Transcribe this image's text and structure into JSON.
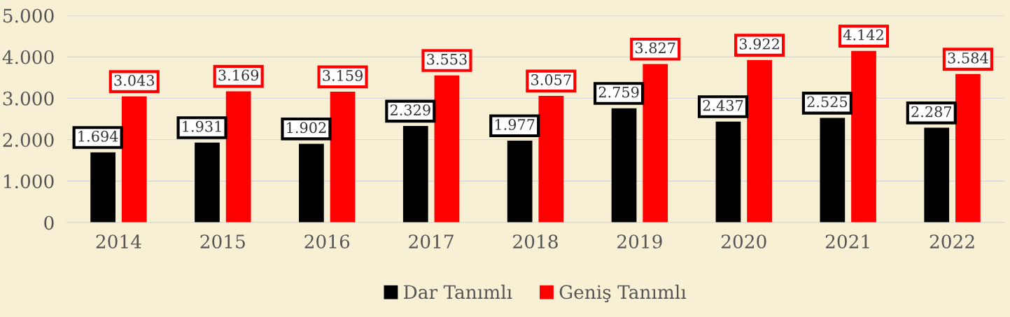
{
  "chart_data": {
    "type": "bar",
    "categories": [
      "2014",
      "2015",
      "2016",
      "2017",
      "2018",
      "2019",
      "2020",
      "2021",
      "2022"
    ],
    "series": [
      {
        "name": "Dar Tanımlı",
        "color": "#000000",
        "values": [
          1694,
          1931,
          1902,
          2329,
          1977,
          2759,
          2437,
          2525,
          2287
        ],
        "value_labels": [
          "1.694",
          "1.931",
          "1.902",
          "2.329",
          "1.977",
          "2.759",
          "2.437",
          "2.525",
          "2.287"
        ]
      },
      {
        "name": "Geniş Tanımlı",
        "color": "#ff0000",
        "values": [
          3043,
          3169,
          3159,
          3553,
          3057,
          3827,
          3922,
          4142,
          3584
        ],
        "value_labels": [
          "3.043",
          "3.169",
          "3.159",
          "3.553",
          "3.057",
          "3.827",
          "3.922",
          "4.142",
          "3.584"
        ]
      }
    ],
    "ylim": [
      0,
      5000
    ],
    "yticks": [
      {
        "value": 0,
        "label": "0"
      },
      {
        "value": 1000,
        "label": "1.000"
      },
      {
        "value": 2000,
        "label": "2.000"
      },
      {
        "value": 3000,
        "label": "3.000"
      },
      {
        "value": 4000,
        "label": "4.000"
      },
      {
        "value": 5000,
        "label": "5.000"
      }
    ],
    "grid": "y",
    "legend": "bottom"
  }
}
